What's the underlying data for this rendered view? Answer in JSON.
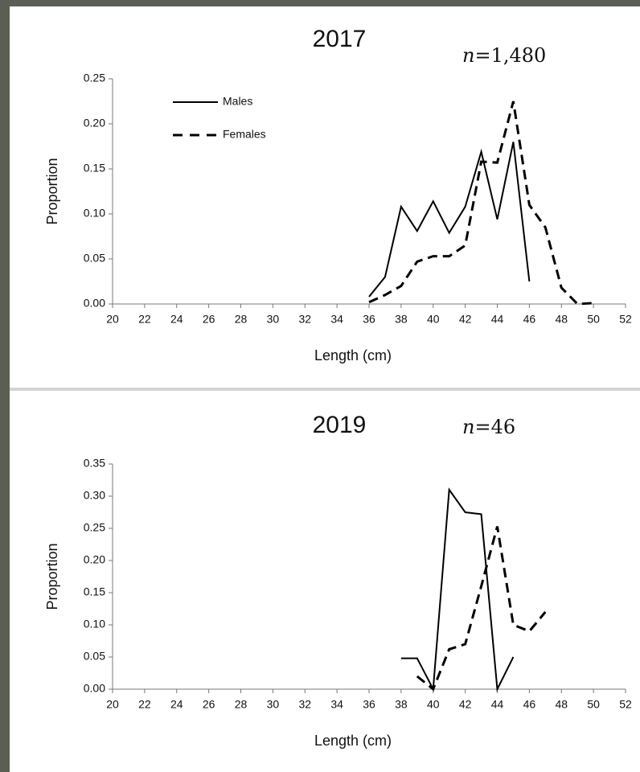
{
  "chart_data": [
    {
      "type": "line",
      "title": "2017",
      "annotation": {
        "symbol": "n",
        "text": "=1,480"
      },
      "x_label": "Length (cm)",
      "y_label": "Proportion",
      "x": [
        36,
        37,
        38,
        39,
        40,
        41,
        42,
        43,
        44,
        45,
        46,
        47,
        48,
        49,
        50
      ],
      "series": [
        {
          "name": "Males",
          "color": "#000000",
          "dash": false,
          "values": [
            0.008,
            0.03,
            0.108,
            0.081,
            0.114,
            0.079,
            0.108,
            0.169,
            0.094,
            0.18,
            0.025,
            null,
            null,
            null,
            null
          ]
        },
        {
          "name": "Females",
          "color": "#000000",
          "dash": true,
          "values": [
            0.002,
            0.01,
            0.02,
            0.047,
            0.053,
            0.053,
            0.065,
            0.158,
            0.157,
            0.225,
            0.11,
            0.085,
            0.018,
            0.0,
            0.001
          ]
        }
      ],
      "xlim": [
        20,
        52
      ],
      "xticks": [
        20,
        22,
        24,
        26,
        28,
        30,
        32,
        34,
        36,
        38,
        40,
        42,
        44,
        46,
        48,
        50,
        52
      ],
      "ylim": [
        0,
        0.25
      ],
      "yticks": [
        {
          "value": 0,
          "label": "0.00"
        },
        {
          "value": 0.05,
          "label": "0.05"
        },
        {
          "value": 0.1,
          "label": "0.10"
        },
        {
          "value": 0.15,
          "label": "0.15"
        },
        {
          "value": 0.2,
          "label": "0.20"
        },
        {
          "value": 0.25,
          "label": "0.25"
        }
      ],
      "legend": "upper-left"
    },
    {
      "type": "line",
      "title": "2019",
      "annotation": {
        "symbol": "n",
        "text": "=46"
      },
      "x_label": "Length (cm)",
      "y_label": "Proportion",
      "x": [
        38,
        39,
        40,
        41,
        42,
        43,
        44,
        45,
        46,
        47
      ],
      "series": [
        {
          "color": "#000000",
          "dash": false,
          "values": [
            0.048,
            0.048,
            0.0,
            0.31,
            0.275,
            0.272,
            0.0,
            0.05,
            null,
            null
          ]
        },
        {
          "color": "#000000",
          "dash": true,
          "values": [
            null,
            0.02,
            0.0,
            0.062,
            0.07,
            0.16,
            0.253,
            0.1,
            0.09,
            0.12
          ]
        }
      ],
      "xlim": [
        20,
        52
      ],
      "xticks": [
        20,
        22,
        24,
        26,
        28,
        30,
        32,
        34,
        36,
        38,
        40,
        42,
        44,
        46,
        48,
        50,
        52
      ],
      "ylim": [
        0,
        0.35
      ],
      "yticks": [
        {
          "value": 0,
          "label": "0.00"
        },
        {
          "value": 0.05,
          "label": "0.05"
        },
        {
          "value": 0.1,
          "label": "0.10"
        },
        {
          "value": 0.15,
          "label": "0.15"
        },
        {
          "value": 0.2,
          "label": "0.20"
        },
        {
          "value": 0.25,
          "label": "0.25"
        },
        {
          "value": 0.3,
          "label": "0.30"
        },
        {
          "value": 0.35,
          "label": "0.35"
        }
      ]
    }
  ]
}
